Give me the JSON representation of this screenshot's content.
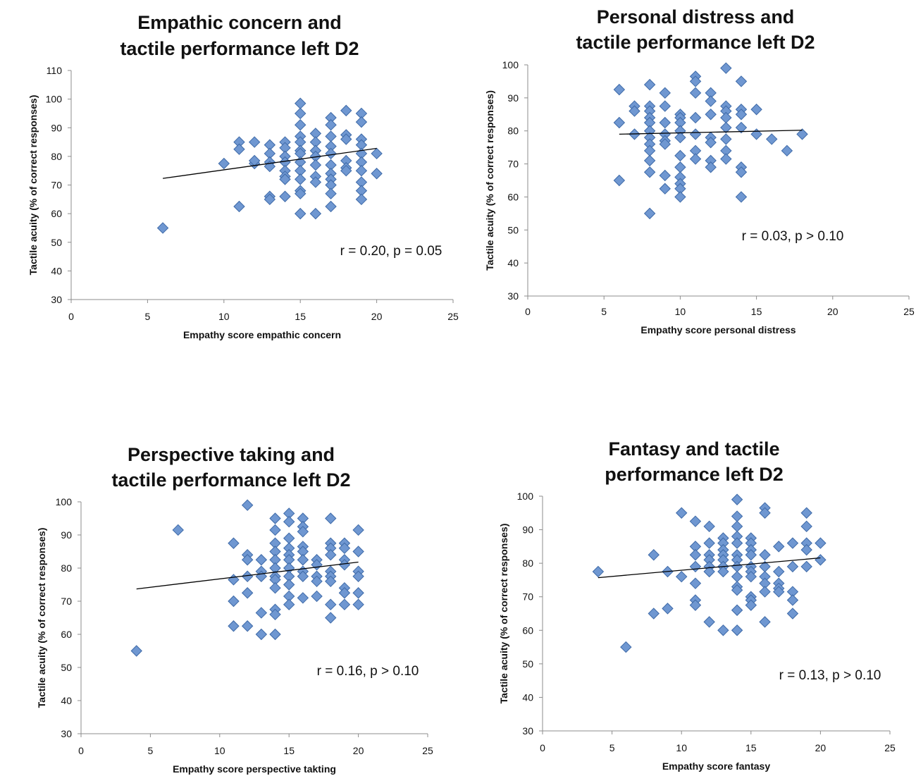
{
  "chart_data": [
    {
      "type": "scatter",
      "title_lines": [
        "Empathic concern and",
        "tactile performance left D2"
      ],
      "xlabel": "Empathy score empathic concern",
      "ylabel": "Tactile acuity (% of correct responses)",
      "xlim": [
        0,
        25
      ],
      "ylim": [
        30,
        110
      ],
      "xticks": [
        0,
        5,
        10,
        15,
        20,
        25
      ],
      "yticks": [
        30,
        40,
        50,
        60,
        70,
        80,
        90,
        100,
        110
      ],
      "annotation": "r = 0.20, p = 0.05",
      "trendline": [
        [
          6,
          72.3
        ],
        [
          20,
          82.8
        ]
      ],
      "points": [
        [
          6,
          55
        ],
        [
          10,
          77.5
        ],
        [
          11,
          85
        ],
        [
          11,
          82.5
        ],
        [
          11,
          62.5
        ],
        [
          12,
          85
        ],
        [
          12,
          77.5
        ],
        [
          12,
          78.5
        ],
        [
          13,
          84
        ],
        [
          13,
          81
        ],
        [
          13,
          78
        ],
        [
          13,
          76.5
        ],
        [
          13,
          66
        ],
        [
          13,
          65
        ],
        [
          14,
          85
        ],
        [
          14,
          83
        ],
        [
          14,
          80
        ],
        [
          14,
          78
        ],
        [
          14,
          75
        ],
        [
          14,
          73
        ],
        [
          14,
          72
        ],
        [
          14,
          66
        ],
        [
          15,
          98.5
        ],
        [
          15,
          95
        ],
        [
          15,
          91
        ],
        [
          15,
          87
        ],
        [
          15,
          85
        ],
        [
          15,
          82
        ],
        [
          15,
          81
        ],
        [
          15,
          78
        ],
        [
          15,
          75
        ],
        [
          15,
          72
        ],
        [
          15,
          68
        ],
        [
          15,
          67
        ],
        [
          15,
          60
        ],
        [
          16,
          88
        ],
        [
          16,
          85
        ],
        [
          16,
          82
        ],
        [
          16,
          80
        ],
        [
          16,
          77
        ],
        [
          16,
          73
        ],
        [
          16,
          71
        ],
        [
          16,
          60
        ],
        [
          17,
          93.5
        ],
        [
          17,
          91
        ],
        [
          17,
          87
        ],
        [
          17,
          83.5
        ],
        [
          17,
          81
        ],
        [
          17,
          77
        ],
        [
          17,
          74
        ],
        [
          17,
          72
        ],
        [
          17,
          70
        ],
        [
          17,
          67
        ],
        [
          17,
          62.5
        ],
        [
          18,
          96
        ],
        [
          18,
          87.5
        ],
        [
          18,
          86
        ],
        [
          18,
          78.5
        ],
        [
          18,
          76
        ],
        [
          18,
          75
        ],
        [
          19,
          95
        ],
        [
          19,
          92
        ],
        [
          19,
          86
        ],
        [
          19,
          84
        ],
        [
          19,
          81
        ],
        [
          19,
          78
        ],
        [
          19,
          75
        ],
        [
          19,
          71
        ],
        [
          19,
          68
        ],
        [
          19,
          65
        ],
        [
          20,
          81
        ],
        [
          20,
          74
        ]
      ]
    },
    {
      "type": "scatter",
      "title_lines": [
        "Personal distress and",
        "tactile performance left D2"
      ],
      "xlabel": "Empathy score personal distress",
      "ylabel": "Tactile acuity (% of correct responses)",
      "xlim": [
        0,
        25
      ],
      "ylim": [
        30,
        100
      ],
      "xticks": [
        0,
        5,
        10,
        15,
        20,
        25
      ],
      "yticks": [
        30,
        40,
        50,
        60,
        70,
        80,
        90,
        100
      ],
      "annotation": "r = 0.03, p > 0.10",
      "trendline": [
        [
          6,
          79
        ],
        [
          18,
          80.2
        ]
      ],
      "points": [
        [
          6,
          92.5
        ],
        [
          6,
          82.5
        ],
        [
          6,
          65
        ],
        [
          7,
          87.5
        ],
        [
          7,
          86
        ],
        [
          7,
          79
        ],
        [
          8,
          94
        ],
        [
          8,
          87.5
        ],
        [
          8,
          86
        ],
        [
          8,
          84
        ],
        [
          8,
          82.5
        ],
        [
          8,
          80
        ],
        [
          8,
          78
        ],
        [
          8,
          76
        ],
        [
          8,
          74
        ],
        [
          8,
          71
        ],
        [
          8,
          67.5
        ],
        [
          8,
          55
        ],
        [
          9,
          91.5
        ],
        [
          9,
          87.5
        ],
        [
          9,
          82.5
        ],
        [
          9,
          79
        ],
        [
          9,
          77
        ],
        [
          9,
          76
        ],
        [
          9,
          66.5
        ],
        [
          9,
          62.5
        ],
        [
          10,
          85
        ],
        [
          10,
          84
        ],
        [
          10,
          82.5
        ],
        [
          10,
          80
        ],
        [
          10,
          78
        ],
        [
          10,
          72.5
        ],
        [
          10,
          69
        ],
        [
          10,
          66
        ],
        [
          10,
          64
        ],
        [
          10,
          62.5
        ],
        [
          10,
          60
        ],
        [
          11,
          96.5
        ],
        [
          11,
          95
        ],
        [
          11,
          91.5
        ],
        [
          11,
          84
        ],
        [
          11,
          79
        ],
        [
          11,
          74
        ],
        [
          11,
          71.5
        ],
        [
          12,
          91.5
        ],
        [
          12,
          89
        ],
        [
          12,
          85
        ],
        [
          12,
          78
        ],
        [
          12,
          76.5
        ],
        [
          12,
          71
        ],
        [
          12,
          69
        ],
        [
          13,
          99
        ],
        [
          13,
          87.5
        ],
        [
          13,
          86
        ],
        [
          13,
          84
        ],
        [
          13,
          81
        ],
        [
          13,
          77.5
        ],
        [
          13,
          74
        ],
        [
          13,
          71.5
        ],
        [
          14,
          95
        ],
        [
          14,
          86.5
        ],
        [
          14,
          85
        ],
        [
          14,
          81
        ],
        [
          14,
          69
        ],
        [
          14,
          67.5
        ],
        [
          14,
          60
        ],
        [
          15,
          86.5
        ],
        [
          15,
          79
        ],
        [
          16,
          77.5
        ],
        [
          17,
          74
        ],
        [
          18,
          79
        ]
      ]
    },
    {
      "type": "scatter",
      "title_lines": [
        "Perspective taking and",
        "tactile performance left D2"
      ],
      "xlabel": "Empathy score perspective takting",
      "ylabel": "Tactile acuity (% of correct responses)",
      "xlim": [
        0,
        25
      ],
      "ylim": [
        30,
        100
      ],
      "xticks": [
        0,
        5,
        10,
        15,
        20,
        25
      ],
      "yticks": [
        30,
        40,
        50,
        60,
        70,
        80,
        90,
        100
      ],
      "annotation": "r = 0.16, p > 0.10",
      "trendline": [
        [
          4,
          73.7
        ],
        [
          20,
          81.8
        ]
      ],
      "points": [
        [
          4,
          55
        ],
        [
          7,
          91.5
        ],
        [
          11,
          87.5
        ],
        [
          11,
          76.5
        ],
        [
          11,
          70
        ],
        [
          11,
          62.5
        ],
        [
          12,
          99
        ],
        [
          12,
          84
        ],
        [
          12,
          82.5
        ],
        [
          12,
          77.5
        ],
        [
          12,
          72.5
        ],
        [
          12,
          62.5
        ],
        [
          13,
          82.5
        ],
        [
          13,
          79
        ],
        [
          13,
          77.5
        ],
        [
          13,
          66.5
        ],
        [
          13,
          60
        ],
        [
          14,
          95
        ],
        [
          14,
          91.5
        ],
        [
          14,
          87.5
        ],
        [
          14,
          85
        ],
        [
          14,
          82.5
        ],
        [
          14,
          80
        ],
        [
          14,
          77.5
        ],
        [
          14,
          76.5
        ],
        [
          14,
          74
        ],
        [
          14,
          67.5
        ],
        [
          14,
          66
        ],
        [
          14,
          60
        ],
        [
          15,
          96.5
        ],
        [
          15,
          94
        ],
        [
          15,
          89
        ],
        [
          15,
          86
        ],
        [
          15,
          84
        ],
        [
          15,
          82.5
        ],
        [
          15,
          80
        ],
        [
          15,
          77.5
        ],
        [
          15,
          75
        ],
        [
          15,
          71.5
        ],
        [
          15,
          69
        ],
        [
          16,
          95
        ],
        [
          16,
          92.5
        ],
        [
          16,
          91
        ],
        [
          16,
          86.5
        ],
        [
          16,
          85
        ],
        [
          16,
          82.5
        ],
        [
          16,
          79
        ],
        [
          16,
          77.5
        ],
        [
          16,
          71
        ],
        [
          17,
          82.5
        ],
        [
          17,
          81
        ],
        [
          17,
          77.5
        ],
        [
          17,
          76
        ],
        [
          17,
          71.5
        ],
        [
          18,
          95
        ],
        [
          18,
          87.5
        ],
        [
          18,
          86
        ],
        [
          18,
          84
        ],
        [
          18,
          79
        ],
        [
          18,
          77.5
        ],
        [
          18,
          76
        ],
        [
          18,
          69
        ],
        [
          18,
          65
        ],
        [
          19,
          87.5
        ],
        [
          19,
          86
        ],
        [
          19,
          82.5
        ],
        [
          19,
          81
        ],
        [
          19,
          74
        ],
        [
          19,
          72.5
        ],
        [
          19,
          69
        ],
        [
          20,
          91.5
        ],
        [
          20,
          85
        ],
        [
          20,
          79
        ],
        [
          20,
          77.5
        ],
        [
          20,
          72.5
        ],
        [
          20,
          69
        ]
      ]
    },
    {
      "type": "scatter",
      "title_lines": [
        "Fantasy and tactile",
        "performance left D2"
      ],
      "xlabel": "Empathy score fantasy",
      "ylabel": "Tactile acuity (% of correct responses)",
      "xlim": [
        0,
        25
      ],
      "ylim": [
        30,
        100
      ],
      "xticks": [
        0,
        5,
        10,
        15,
        20,
        25
      ],
      "yticks": [
        30,
        40,
        50,
        60,
        70,
        80,
        90,
        100
      ],
      "annotation": "r = 0.13, p > 0.10",
      "trendline": [
        [
          4,
          75.7
        ],
        [
          20,
          81.6
        ]
      ],
      "points": [
        [
          4,
          77.5
        ],
        [
          6,
          55
        ],
        [
          8,
          82.5
        ],
        [
          8,
          65
        ],
        [
          9,
          77.5
        ],
        [
          9,
          66.5
        ],
        [
          10,
          95
        ],
        [
          10,
          76
        ],
        [
          11,
          92.5
        ],
        [
          11,
          85
        ],
        [
          11,
          82.5
        ],
        [
          11,
          79
        ],
        [
          11,
          74
        ],
        [
          11,
          69
        ],
        [
          11,
          67.5
        ],
        [
          12,
          91
        ],
        [
          12,
          86
        ],
        [
          12,
          82.5
        ],
        [
          12,
          81
        ],
        [
          12,
          79
        ],
        [
          12,
          77.5
        ],
        [
          12,
          62.5
        ],
        [
          13,
          87.5
        ],
        [
          13,
          86
        ],
        [
          13,
          84
        ],
        [
          13,
          82.5
        ],
        [
          13,
          81
        ],
        [
          13,
          79
        ],
        [
          13,
          77.5
        ],
        [
          13,
          60
        ],
        [
          14,
          99
        ],
        [
          14,
          94
        ],
        [
          14,
          91
        ],
        [
          14,
          88
        ],
        [
          14,
          86
        ],
        [
          14,
          82.5
        ],
        [
          14,
          81
        ],
        [
          14,
          79
        ],
        [
          14,
          76
        ],
        [
          14,
          73
        ],
        [
          14,
          72
        ],
        [
          14,
          66
        ],
        [
          14,
          60
        ],
        [
          15,
          87.5
        ],
        [
          15,
          86
        ],
        [
          15,
          84
        ],
        [
          15,
          82.5
        ],
        [
          15,
          79
        ],
        [
          15,
          77.5
        ],
        [
          15,
          76
        ],
        [
          15,
          70
        ],
        [
          15,
          69
        ],
        [
          15,
          67.5
        ],
        [
          16,
          96.5
        ],
        [
          16,
          95
        ],
        [
          16,
          82.5
        ],
        [
          16,
          79
        ],
        [
          16,
          76
        ],
        [
          16,
          74
        ],
        [
          16,
          71.5
        ],
        [
          16,
          62.5
        ],
        [
          17,
          85
        ],
        [
          17,
          77.5
        ],
        [
          17,
          74
        ],
        [
          17,
          72.5
        ],
        [
          17,
          71.5
        ],
        [
          18,
          86
        ],
        [
          18,
          79
        ],
        [
          18,
          71.5
        ],
        [
          18,
          69
        ],
        [
          18,
          65
        ],
        [
          19,
          95
        ],
        [
          19,
          91
        ],
        [
          19,
          86
        ],
        [
          19,
          84
        ],
        [
          19,
          79
        ],
        [
          20,
          86
        ],
        [
          20,
          81
        ]
      ]
    }
  ]
}
